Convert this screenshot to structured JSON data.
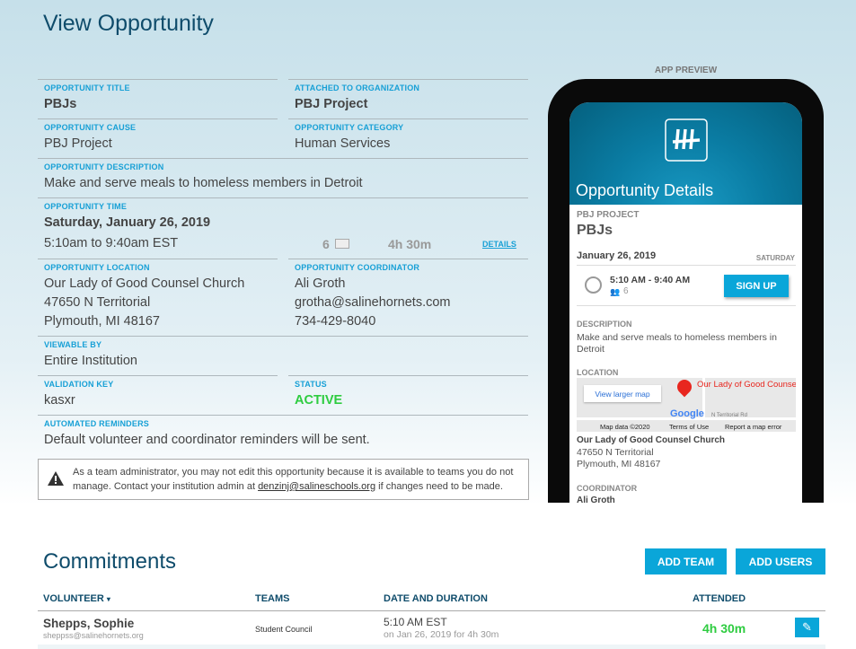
{
  "page": {
    "title": "View Opportunity"
  },
  "fields": {
    "title": {
      "label": "OPPORTUNITY TITLE",
      "value": "PBJs"
    },
    "org": {
      "label": "ATTACHED TO ORGANIZATION",
      "value": "PBJ Project"
    },
    "cause": {
      "label": "OPPORTUNITY CAUSE",
      "value": "PBJ Project"
    },
    "category": {
      "label": "OPPORTUNITY CATEGORY",
      "value": "Human Services"
    },
    "description": {
      "label": "OPPORTUNITY DESCRIPTION",
      "value": "Make and serve meals to homeless members in Detroit"
    },
    "time": {
      "label": "OPPORTUNITY TIME",
      "date": "Saturday, January 26, 2019",
      "range": "5:10am to 9:40am EST",
      "slots": "6",
      "duration": "4h 30m",
      "details_link": "DETAILS"
    },
    "location": {
      "label": "OPPORTUNITY LOCATION",
      "name": "Our Lady of Good Counsel Church",
      "street": "47650 N Territorial",
      "city": "Plymouth, MI 48167"
    },
    "coordinator": {
      "label": "OPPORTUNITY COORDINATOR",
      "name": "Ali Groth",
      "email": "grotha@salinehornets.com",
      "phone": "734-429-8040"
    },
    "viewable": {
      "label": "VIEWABLE BY",
      "value": "Entire Institution"
    },
    "validation": {
      "label": "VALIDATION KEY",
      "value": "kasxr"
    },
    "status": {
      "label": "STATUS",
      "value": "ACTIVE",
      "color": "#2ecc40"
    },
    "reminders": {
      "label": "AUTOMATED REMINDERS",
      "value": "Default volunteer and coordinator reminders will be sent."
    }
  },
  "notice": {
    "text_before": "As a team administrator, you may not edit this opportunity because it is available to teams you do not manage. Contact your institution admin at ",
    "email": "denzinj@salineschools.org",
    "text_after": " if changes need to be made."
  },
  "preview": {
    "label": "APP PREVIEW",
    "header": "Opportunity Details",
    "org": "PBJ PROJECT",
    "title": "PBJs",
    "date": "January 26, 2019",
    "weekday": "SATURDAY",
    "shift_time": "5:10 AM - 9:40 AM",
    "shift_slots": "6",
    "signup": "SIGN UP",
    "desc_label": "DESCRIPTION",
    "desc": "Make and serve meals to homeless members in Detroit",
    "loc_label": "LOCATION",
    "map": {
      "larger": "View larger map",
      "pin": "Our Lady of Good Counsel Catholic Church",
      "road": "N Territorial Rd",
      "google": "Google",
      "data": "Map data ©2020",
      "terms": "Terms of Use",
      "report": "Report a map error"
    },
    "loc_name": "Our Lady of Good Counsel Church",
    "loc_street": "47650 N Territorial",
    "loc_city": "Plymouth, MI 48167",
    "coord_label": "COORDINATOR",
    "coord_name": "Ali Groth"
  },
  "commitments": {
    "title": "Commitments",
    "add_team": "ADD TEAM",
    "add_users": "ADD USERS",
    "columns": [
      "VOLUNTEER",
      "TEAMS",
      "DATE AND DURATION",
      "ATTENDED"
    ],
    "rows": [
      {
        "name": "Shepps, Sophie",
        "email": "sheppss@salinehornets.org",
        "team": "Student Council",
        "time": "5:10 AM EST",
        "detail": "on Jan 26, 2019 for 4h 30m",
        "attended": "4h 30m"
      }
    ]
  },
  "colors": {
    "accent": "#0aa6d9",
    "heading": "#0f4c6b",
    "label": "#17a0d6"
  }
}
